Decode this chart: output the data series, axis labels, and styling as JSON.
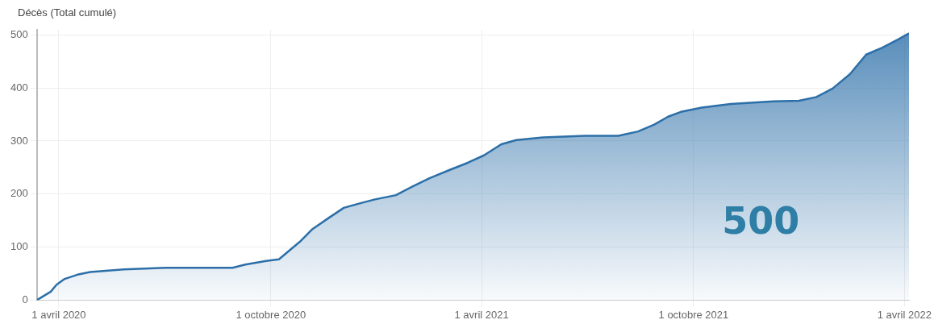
{
  "chart_data": {
    "type": "area",
    "ylabel": "Décès (Total cumulé)",
    "annotations": [
      "500"
    ],
    "x": [
      "2020-03-13",
      "2020-03-25",
      "2020-03-30",
      "2020-04-06",
      "2020-04-17",
      "2020-04-28",
      "2020-05-27",
      "2020-07-02",
      "2020-08-29",
      "2020-09-09",
      "2020-09-27",
      "2020-10-08",
      "2020-10-15",
      "2020-10-26",
      "2020-11-06",
      "2020-11-20",
      "2020-12-03",
      "2020-12-16",
      "2020-12-30",
      "2021-01-17",
      "2021-01-31",
      "2021-02-15",
      "2021-03-05",
      "2021-03-20",
      "2021-04-03",
      "2021-04-18",
      "2021-05-01",
      "2021-05-24",
      "2021-06-29",
      "2021-07-28",
      "2021-08-14",
      "2021-08-28",
      "2021-09-09",
      "2021-09-20",
      "2021-10-08",
      "2021-11-02",
      "2021-12-09",
      "2021-12-31",
      "2022-01-15",
      "2022-01-29",
      "2022-02-13",
      "2022-02-27",
      "2022-03-13",
      "2022-03-27",
      "2022-04-05"
    ],
    "series": [
      {
        "color": "#2c6fa8",
        "values": [
          0,
          16,
          29,
          40,
          48,
          53,
          58,
          61,
          61,
          67,
          74,
          77,
          90,
          110,
          134,
          155,
          174,
          182,
          190,
          198,
          214,
          230,
          246,
          259,
          273,
          294,
          302,
          307,
          310,
          310,
          318,
          331,
          346,
          355,
          363,
          370,
          375,
          376,
          383,
          399,
          426,
          463,
          476,
          492,
          503
        ]
      }
    ],
    "xlim": [
      "2020-03-13",
      "2022-04-05"
    ],
    "xticks": [
      {
        "value": "2020-04-01",
        "label": "1 avril 2020"
      },
      {
        "value": "2020-10-01",
        "label": "1 octobre 2020"
      },
      {
        "value": "2021-04-01",
        "label": "1 avril 2021"
      },
      {
        "value": "2021-10-01",
        "label": "1 octobre 2021"
      },
      {
        "value": "2022-04-01",
        "label": "1 avril 2022"
      }
    ],
    "ylim": [
      0,
      510
    ],
    "yticks": [
      0,
      100,
      200,
      300,
      400,
      500
    ],
    "grid": true
  }
}
